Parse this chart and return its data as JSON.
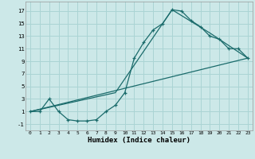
{
  "xlabel": "Humidex (Indice chaleur)",
  "bg_color": "#cce8e8",
  "grid_color": "#aad4d4",
  "line_color": "#1a6b6b",
  "xlim": [
    -0.5,
    23.5
  ],
  "ylim": [
    -2,
    18.5
  ],
  "xticks": [
    0,
    1,
    2,
    3,
    4,
    5,
    6,
    7,
    8,
    9,
    10,
    11,
    12,
    13,
    14,
    15,
    16,
    17,
    18,
    19,
    20,
    21,
    22,
    23
  ],
  "yticks": [
    -1,
    1,
    3,
    5,
    7,
    9,
    11,
    13,
    15,
    17
  ],
  "curve_main_x": [
    0,
    1,
    2,
    3,
    4,
    5,
    6,
    7,
    8,
    9,
    10,
    11,
    12,
    13,
    14,
    15,
    16,
    17,
    18,
    19,
    20,
    21,
    22,
    23
  ],
  "curve_main_y": [
    1,
    1,
    3,
    1,
    -0.3,
    -0.5,
    -0.5,
    -0.3,
    1,
    2,
    4,
    9.5,
    12,
    14,
    15,
    17.2,
    17,
    15.5,
    14.5,
    13,
    12.5,
    11,
    11,
    9.5
  ],
  "line1_x": [
    0,
    23
  ],
  "line1_y": [
    1,
    9.5
  ],
  "line2_x": [
    0,
    9,
    15,
    19,
    23
  ],
  "line2_y": [
    1,
    4,
    17.2,
    13.5,
    9.5
  ]
}
